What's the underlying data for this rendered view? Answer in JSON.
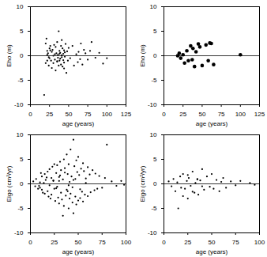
{
  "chart_data": [
    {
      "type": "scatter",
      "x_label": "age (years)",
      "y_label": "Eho (m)",
      "color": "#000000",
      "marker": "dot",
      "xlim": [
        0,
        125
      ],
      "xticks": [
        0,
        25,
        50,
        75,
        100,
        125
      ],
      "ylim": [
        -10,
        10
      ],
      "yticks": [
        -10,
        -5,
        0,
        5,
        10
      ],
      "hline": 0,
      "x": [
        18,
        20,
        21,
        22,
        22,
        23,
        24,
        25,
        25,
        26,
        27,
        28,
        28,
        29,
        30,
        30,
        31,
        32,
        32,
        33,
        33,
        34,
        35,
        35,
        36,
        36,
        37,
        37,
        38,
        38,
        39,
        39,
        40,
        40,
        41,
        41,
        42,
        42,
        43,
        43,
        44,
        44,
        45,
        45,
        46,
        47,
        48,
        49,
        50,
        52,
        55,
        57,
        60,
        62,
        63,
        65,
        66,
        68,
        70,
        72,
        75,
        78,
        80,
        85,
        90,
        95,
        100,
        20,
        22,
        24,
        26,
        35,
        38,
        41,
        44
      ],
      "values": [
        -8,
        2.5,
        3.5,
        1,
        -1,
        0.5,
        -2,
        1.5,
        -0.5,
        2,
        -1,
        0.8,
        -2.5,
        1.2,
        0,
        -1.5,
        2.2,
        0.3,
        -0.8,
        1.8,
        -3,
        0.5,
        -1.2,
        2.8,
        0.2,
        -0.4,
        5,
        -2,
        1,
        -1,
        0.6,
        -0.6,
        2,
        -1.8,
        0.1,
        -0.3,
        1.5,
        -2.2,
        0.4,
        -0.9,
        1.1,
        -1.4,
        0.7,
        -0.2,
        2.4,
        -3.5,
        0.9,
        -1,
        1.6,
        -0.5,
        2,
        -2,
        0.3,
        -1.3,
        0.8,
        -0.7,
        2.5,
        -1.8,
        1.2,
        0.5,
        -0.8,
        1,
        2.8,
        -0.4,
        0.6,
        -1.6,
        -0.5,
        -1.5,
        0.2,
        -0.3,
        1.1,
        -1.1,
        0.4,
        3.2,
        -2.6
      ]
    },
    {
      "type": "scatter",
      "x_label": "age (years)",
      "y_label": "Eho (m)",
      "color": "#000000",
      "marker": "circle",
      "xlim": [
        0,
        125
      ],
      "xticks": [
        0,
        25,
        50,
        75,
        100,
        125
      ],
      "ylim": [
        -10,
        10
      ],
      "yticks": [
        -10,
        -5,
        0,
        5,
        10
      ],
      "hline": 0,
      "x": [
        18,
        20,
        22,
        25,
        27,
        30,
        32,
        35,
        37,
        38,
        40,
        42,
        45,
        47,
        50,
        55,
        58,
        60,
        62,
        65,
        100
      ],
      "values": [
        0,
        0.5,
        -0.5,
        0.2,
        -1.5,
        1,
        -1,
        2,
        -0.8,
        1.5,
        -2.2,
        0.8,
        2.4,
        1.8,
        -2,
        2.2,
        -1,
        2.6,
        2.5,
        -1.8,
        0.2
      ]
    },
    {
      "type": "scatter",
      "x_label": "age (years)",
      "y_label": "Eigo (cm²/yr)",
      "color": "#000000",
      "marker": "dot",
      "xlim": [
        0,
        100
      ],
      "xticks": [
        0,
        25,
        50,
        75,
        100
      ],
      "ylim": [
        -10,
        10
      ],
      "yticks": [
        -10,
        -5,
        0,
        5,
        10
      ],
      "hline": 0,
      "x": [
        3,
        5,
        6,
        8,
        10,
        10,
        12,
        12,
        14,
        15,
        15,
        16,
        18,
        18,
        20,
        20,
        21,
        22,
        22,
        23,
        24,
        25,
        25,
        26,
        27,
        28,
        28,
        29,
        30,
        30,
        31,
        32,
        32,
        33,
        34,
        35,
        35,
        36,
        37,
        38,
        38,
        39,
        40,
        40,
        41,
        42,
        42,
        43,
        44,
        45,
        45,
        46,
        47,
        48,
        48,
        49,
        50,
        50,
        51,
        52,
        53,
        54,
        55,
        55,
        56,
        57,
        58,
        60,
        60,
        62,
        63,
        65,
        67,
        68,
        70,
        72,
        75,
        78,
        80,
        85,
        90,
        95,
        98,
        9,
        11,
        13,
        17,
        19,
        24,
        27,
        31,
        34,
        36,
        39,
        41,
        44,
        47,
        52,
        58,
        30,
        40,
        45
      ],
      "values": [
        0.5,
        -0.5,
        1,
        -1,
        0.3,
        -0.8,
        1.5,
        -1.2,
        0.2,
        2,
        -2,
        0.8,
        -1.5,
        2.5,
        -0.3,
        3,
        -3,
        1.2,
        -2.2,
        3.5,
        0.6,
        -1,
        4,
        -3.5,
        2.2,
        -0.6,
        3.8,
        -2.8,
        1.4,
        -4,
        4.5,
        -1.8,
        2.8,
        -3.2,
        0.9,
        5,
        -4.5,
        3.2,
        -2.4,
        6,
        -1.2,
        2,
        -5,
        4,
        -3,
        7,
        -2,
        1.5,
        -3.8,
        9,
        -6,
        3.6,
        -2.6,
        4.8,
        -4.2,
        2.4,
        5.5,
        -3.4,
        1.8,
        -2.9,
        3.1,
        -1.6,
        4.2,
        -3.6,
        2.6,
        -2.2,
        1.1,
        3.4,
        -2.5,
        1.9,
        -1.7,
        2.8,
        -1.3,
        2.1,
        -1,
        1.6,
        -0.8,
        1.2,
        8,
        0.5,
        -0.4,
        0.6,
        -0.2,
        -0.4,
        2.2,
        -1.8,
        1.3,
        -2.6,
        0.7,
        -0.9,
        1.7,
        -6.5,
        2.3,
        -1.5,
        0.4,
        -0.7,
        1,
        -1.1,
        0.2,
        0.6,
        -0.3,
        0.8
      ]
    },
    {
      "type": "scatter",
      "x_label": "age (years)",
      "y_label": "Eigo (cm²/yr)",
      "color": "#000000",
      "marker": "dot",
      "xlim": [
        0,
        100
      ],
      "xticks": [
        0,
        25,
        50,
        75,
        100
      ],
      "ylim": [
        -10,
        10
      ],
      "yticks": [
        -10,
        -5,
        0,
        5,
        10
      ],
      "hline": 0,
      "x": [
        5,
        8,
        10,
        12,
        14,
        15,
        17,
        18,
        20,
        22,
        24,
        25,
        26,
        28,
        30,
        32,
        33,
        35,
        36,
        38,
        40,
        42,
        45,
        48,
        50,
        52,
        55,
        58,
        60,
        62,
        65,
        70,
        75,
        80,
        90,
        95,
        20,
        25,
        30,
        35,
        40
      ],
      "values": [
        0.5,
        -0.5,
        1,
        -1.5,
        0.3,
        -5,
        1.5,
        -0.8,
        2,
        -1,
        0.6,
        -3,
        1.2,
        -0.4,
        2.5,
        -1.8,
        0.2,
        1,
        -2.2,
        0.7,
        3,
        -1.2,
        1.5,
        -0.6,
        2,
        -1,
        0.8,
        -1.5,
        0.4,
        1.2,
        -0.8,
        0.5,
        -0.3,
        0.6,
        0.2,
        -0.2,
        -2.5,
        1.8,
        -1.6,
        0.9,
        -0.5
      ]
    }
  ]
}
